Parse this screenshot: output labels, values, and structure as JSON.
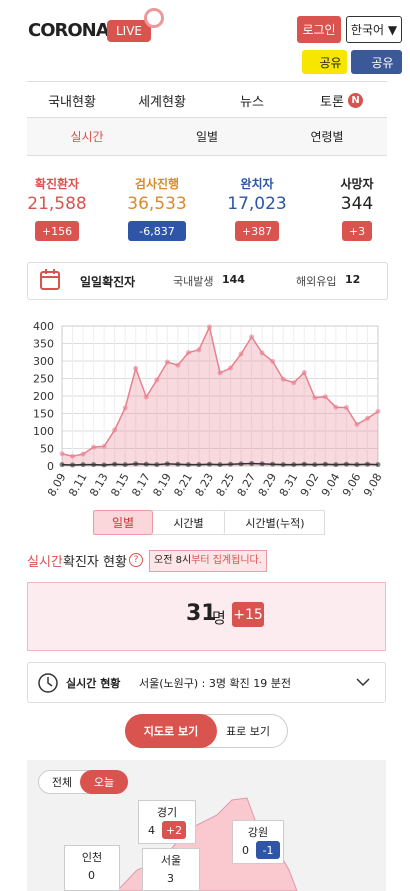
{
  "header": {
    "logo": "CORONA",
    "live": "LIVE",
    "login": "로그인",
    "language": "한국어 ▼",
    "share_kakao": "공유",
    "share_facebook": "공유"
  },
  "nav": {
    "tabs": [
      "국내현황",
      "세계현황",
      "뉴스",
      "토론"
    ],
    "badge": "N"
  },
  "subtabs": [
    "실시간",
    "일별",
    "연령별"
  ],
  "stats": [
    {
      "label": "확진환자",
      "value": "21,588",
      "change": "+156"
    },
    {
      "label": "검사진행",
      "value": "36,533",
      "change": "-6,837"
    },
    {
      "label": "완치자",
      "value": "17,023",
      "change": "+387"
    },
    {
      "label": "사망자",
      "value": "344",
      "change": "+3"
    }
  ],
  "daily": {
    "title": "일일확진자",
    "domain_label": "국내발생",
    "domain_value": "144",
    "overseas_label": "해외유입",
    "overseas_value": "12"
  },
  "chart_data": {
    "type": "line",
    "categories": [
      "8.09",
      null,
      "8.11",
      null,
      "8.13",
      null,
      "8.15",
      null,
      "8.17",
      null,
      "8.19",
      null,
      "8.21",
      null,
      "8.23",
      null,
      "8.25",
      null,
      "8.27",
      null,
      "8.29",
      null,
      "8.31",
      null,
      "9.02",
      null,
      "9.04",
      null,
      "9.06",
      null,
      "9.08"
    ],
    "series": [
      {
        "color": "#e8808f",
        "values": [
          35,
          28,
          34,
          54,
          56,
          103,
          166,
          279,
          197,
          246,
          297,
          288,
          324,
          332,
          397,
          266,
          280,
          320,
          369,
          323,
          299,
          248,
          238,
          267,
          195,
          198,
          168,
          167,
          119,
          136,
          156
        ]
      },
      {
        "color": "#333333",
        "values": [
          4,
          3,
          4,
          4,
          3,
          5,
          4,
          6,
          5,
          4,
          6,
          5,
          4,
          4,
          5,
          4,
          5,
          6,
          7,
          6,
          5,
          4,
          4,
          5,
          4,
          5,
          4,
          5,
          4,
          5,
          4
        ]
      }
    ],
    "ylim": [
      0,
      400
    ],
    "yticks": [
      0,
      50,
      100,
      150,
      200,
      250,
      300,
      350,
      400
    ],
    "grid": true
  },
  "chart_tabs": [
    "일별",
    "시간별",
    "시간별(누적)"
  ],
  "realtime": {
    "title_red": "실시간",
    "title": "확진자 현황",
    "help": "?",
    "notice_time": "오전 8시",
    "notice": "부터 집계됩니다.",
    "count": "31",
    "unit": "명",
    "change": "+15"
  },
  "status": {
    "title": "실시간 현황",
    "text": "서울(노원구) : 3명 확진 19 분전"
  },
  "view_toggle": [
    "지도로 보기",
    "표로 보기"
  ],
  "map": {
    "filters": [
      "전체",
      "오늘"
    ],
    "regions": [
      {
        "name": "경기",
        "value": "4",
        "change": "+2"
      },
      {
        "name": "강원",
        "value": "0",
        "change": "-1"
      },
      {
        "name": "인천",
        "value": "0"
      },
      {
        "name": "서울",
        "value": "3"
      }
    ]
  }
}
